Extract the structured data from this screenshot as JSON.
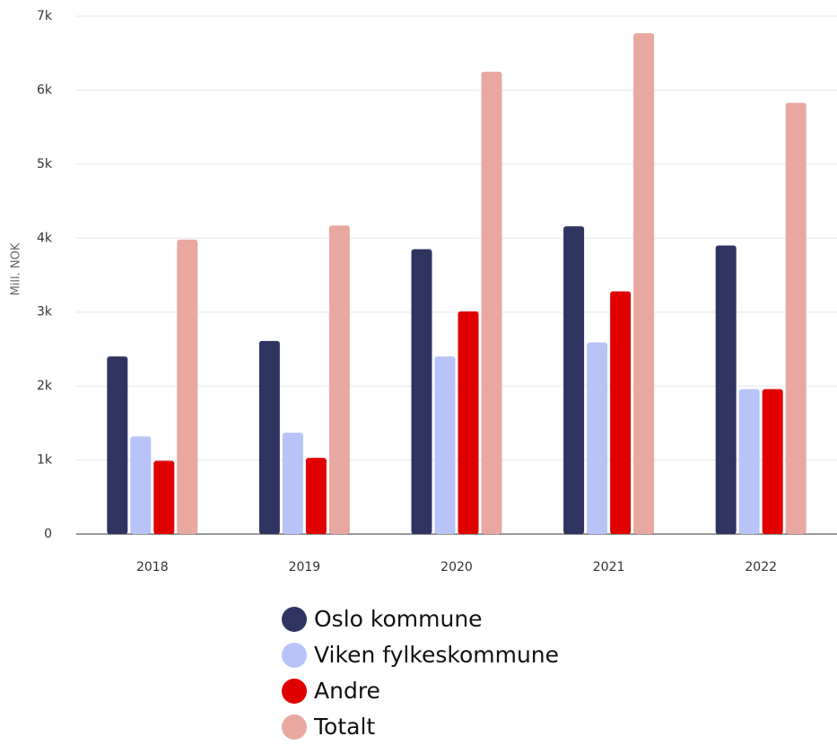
{
  "chart_data": {
    "type": "bar",
    "y_label": "Mill. NOK",
    "categories": [
      "2018",
      "2019",
      "2020",
      "2021",
      "2022"
    ],
    "series": [
      {
        "name": "Oslo kommune",
        "color": "#2f3560",
        "values": [
          2400,
          2610,
          3850,
          4160,
          3900
        ]
      },
      {
        "name": "Viken fylkeskommune",
        "color": "#b8c4f8",
        "values": [
          1320,
          1370,
          2400,
          2590,
          1960
        ]
      },
      {
        "name": "Andre",
        "color": "#e00000",
        "values": [
          990,
          1030,
          3010,
          3280,
          1960
        ]
      },
      {
        "name": "Totalt",
        "color": "#e8a8a0",
        "values": [
          3980,
          4170,
          6250,
          6770,
          5830
        ]
      }
    ],
    "ylim": [
      0,
      7000
    ],
    "yticks": [
      0,
      {
        "value": 1000,
        "label": "1k"
      },
      {
        "value": 2000,
        "label": "2k"
      },
      {
        "value": 3000,
        "label": "3k"
      },
      {
        "value": 4000,
        "label": "4k"
      },
      {
        "value": 5000,
        "label": "5k"
      },
      {
        "value": 6000,
        "label": "6k"
      },
      {
        "value": 7000,
        "label": "7k"
      }
    ],
    "grid": true
  }
}
